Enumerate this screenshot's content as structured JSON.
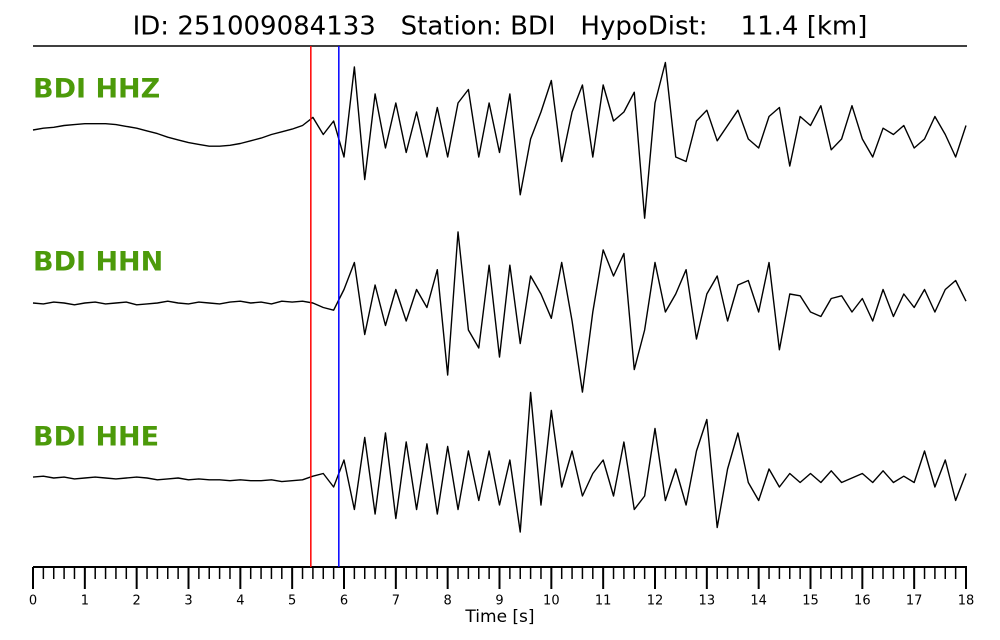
{
  "chart_data": {
    "type": "line",
    "title": "ID: 251009084133   Station: BDI   HypoDist:    11.4 [km]",
    "x_label": "Time [s]",
    "xlim": [
      0,
      18
    ],
    "xticks": [
      0,
      1,
      2,
      3,
      4,
      5,
      6,
      7,
      8,
      9,
      10,
      11,
      12,
      13,
      14,
      15,
      16,
      17,
      18
    ],
    "ylim": [
      -1,
      1
    ],
    "name_color": "#4c9a0a",
    "markers": [
      {
        "x": 5.36,
        "color": "#ff0000"
      },
      {
        "x": 5.9,
        "color": "#0000ff"
      }
    ],
    "x": [
      0,
      0.2,
      0.4,
      0.6,
      0.8,
      1,
      1.2,
      1.4,
      1.6,
      1.8,
      2,
      2.2,
      2.4,
      2.6,
      2.8,
      3,
      3.2,
      3.4,
      3.6,
      3.8,
      4,
      4.2,
      4.4,
      4.6,
      4.8,
      5,
      5.2,
      5.4,
      5.6,
      5.8,
      6,
      6.2,
      6.4,
      6.6,
      6.8,
      7,
      7.2,
      7.4,
      7.6,
      7.8,
      8,
      8.2,
      8.4,
      8.6,
      8.8,
      9,
      9.2,
      9.4,
      9.6,
      9.8,
      10,
      10.2,
      10.4,
      10.6,
      10.8,
      11,
      11.2,
      11.4,
      11.6,
      11.8,
      12,
      12.2,
      12.4,
      12.6,
      12.8,
      13,
      13.2,
      13.4,
      13.6,
      13.8,
      14,
      14.2,
      14.4,
      14.6,
      14.8,
      15,
      15.2,
      15.4,
      15.6,
      15.8,
      16,
      16.2,
      16.4,
      16.6,
      16.8,
      17,
      17.2,
      17.4,
      17.6,
      17.8,
      18
    ],
    "series": [
      {
        "name": "BDI HHZ",
        "color": "#000000",
        "values": [
          0,
          0.02,
          0.03,
          0.05,
          0.06,
          0.07,
          0.07,
          0.07,
          0.06,
          0.04,
          0.02,
          -0.01,
          -0.04,
          -0.08,
          -0.11,
          -0.14,
          -0.16,
          -0.18,
          -0.18,
          -0.17,
          -0.15,
          -0.12,
          -0.09,
          -0.05,
          -0.02,
          0.01,
          0.05,
          0.14,
          -0.05,
          0.1,
          -0.3,
          0.7,
          -0.55,
          0.4,
          -0.2,
          0.3,
          -0.25,
          0.2,
          -0.3,
          0.25,
          -0.3,
          0.3,
          0.45,
          -0.3,
          0.3,
          -0.25,
          0.4,
          -0.72,
          -0.1,
          0.2,
          0.55,
          -0.35,
          0.2,
          0.5,
          -0.3,
          0.5,
          0.1,
          0.2,
          0.42,
          -0.98,
          0.3,
          0.75,
          -0.3,
          -0.35,
          0.1,
          0.22,
          -0.12,
          0.05,
          0.22,
          -0.1,
          -0.2,
          0.15,
          0.25,
          -0.4,
          0.15,
          0.05,
          0.27,
          -0.22,
          -0.1,
          0.27,
          -0.1,
          -0.3,
          0.02,
          -0.05,
          0.05,
          -0.2,
          -0.1,
          0.15,
          -0.05,
          -0.3,
          0.05
        ]
      },
      {
        "name": "BDI HHN",
        "color": "#000000",
        "values": [
          0,
          -0.01,
          0.01,
          0,
          -0.02,
          0,
          0.01,
          -0.01,
          0,
          0.01,
          -0.02,
          -0.01,
          0,
          0.02,
          0,
          -0.01,
          0.01,
          0,
          -0.01,
          0.01,
          0.02,
          0,
          0.01,
          -0.01,
          0.02,
          0.01,
          0.02,
          0,
          -0.05,
          -0.08,
          0.15,
          0.45,
          -0.35,
          0.2,
          -0.25,
          0.15,
          -0.2,
          0.15,
          -0.05,
          0.37,
          -0.8,
          0.79,
          -0.3,
          -0.5,
          0.42,
          -0.6,
          0.42,
          -0.45,
          0.3,
          0.1,
          -0.17,
          0.45,
          -0.2,
          -0.99,
          -0.1,
          0.59,
          0.3,
          0.55,
          -0.74,
          -0.3,
          0.45,
          -0.1,
          0.1,
          0.37,
          -0.4,
          0.1,
          0.3,
          -0.2,
          0.2,
          0.25,
          -0.1,
          0.45,
          -0.52,
          0.1,
          0.08,
          -0.1,
          -0.15,
          0.05,
          0.08,
          -0.1,
          0.05,
          -0.2,
          0.15,
          -0.15,
          0.1,
          -0.05,
          0.15,
          -0.1,
          0.15,
          0.25,
          0.02
        ]
      },
      {
        "name": "BDI HHE",
        "color": "#000000",
        "values": [
          0.01,
          0.02,
          0,
          0.01,
          -0.01,
          0,
          0.01,
          0,
          -0.01,
          0,
          0.01,
          0,
          -0.02,
          -0.01,
          0,
          -0.02,
          -0.01,
          -0.02,
          -0.02,
          -0.03,
          -0.02,
          -0.03,
          -0.03,
          -0.02,
          -0.04,
          -0.03,
          -0.02,
          0.02,
          0.05,
          -0.1,
          0.2,
          -0.35,
          0.45,
          -0.4,
          0.5,
          -0.45,
          0.4,
          -0.35,
          0.38,
          -0.4,
          0.35,
          -0.35,
          0.3,
          -0.25,
          0.3,
          -0.3,
          0.2,
          -0.6,
          0.95,
          -0.3,
          0.75,
          -0.1,
          0.3,
          -0.2,
          0.05,
          0.2,
          -0.2,
          0.4,
          -0.35,
          -0.2,
          0.55,
          -0.25,
          0.1,
          -0.3,
          0.3,
          0.65,
          -0.55,
          0.1,
          0.5,
          -0.05,
          -0.25,
          0.1,
          -0.1,
          0.05,
          -0.05,
          0.05,
          -0.05,
          0.08,
          -0.05,
          0,
          0.05,
          -0.05,
          0.08,
          -0.05,
          0.02,
          -0.05,
          0.3,
          -0.1,
          0.2,
          -0.25,
          0.05
        ]
      }
    ]
  }
}
